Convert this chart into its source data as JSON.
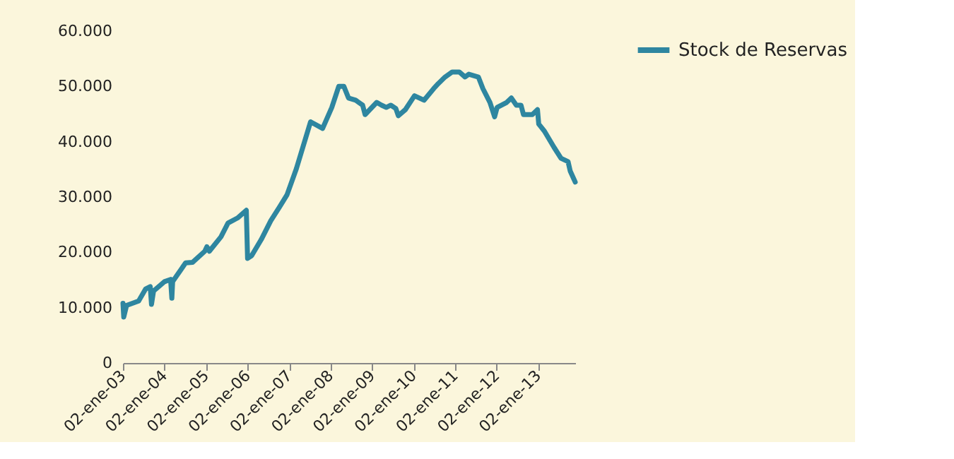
{
  "chart_data": {
    "type": "line",
    "legend": "right",
    "grid": false,
    "marker": "none",
    "line_style": "solid",
    "xlim": [
      "2003-01-02",
      "2013-11-23"
    ],
    "xticks": [
      {
        "value": "2003-01-02",
        "label": "02-ene-03"
      },
      {
        "value": "2004-01-02",
        "label": "02-ene-04"
      },
      {
        "value": "2005-01-02",
        "label": "02-ene-05"
      },
      {
        "value": "2006-01-02",
        "label": "02-ene-06"
      },
      {
        "value": "2007-01-02",
        "label": "02-ene-07"
      },
      {
        "value": "2008-01-02",
        "label": "02-ene-08"
      },
      {
        "value": "2009-01-02",
        "label": "02-ene-09"
      },
      {
        "value": "2010-01-02",
        "label": "02-ene-10"
      },
      {
        "value": "2011-01-02",
        "label": "02-ene-11"
      },
      {
        "value": "2012-01-02",
        "label": "02-ene-12"
      },
      {
        "value": "2013-01-02",
        "label": "02-ene-13"
      }
    ],
    "ylim": [
      0,
      60000
    ],
    "yticks": [
      {
        "value": 0,
        "label": "0"
      },
      {
        "value": 10000,
        "label": "10.000"
      },
      {
        "value": 20000,
        "label": "20.000"
      },
      {
        "value": 30000,
        "label": "30.000"
      },
      {
        "value": 40000,
        "label": "40.000"
      },
      {
        "value": 50000,
        "label": "50.000"
      },
      {
        "value": 60000,
        "label": "60.000"
      }
    ],
    "series": [
      {
        "name": "Stock de Reservas",
        "color": "#2e86a0",
        "x": [
          "2003-01-02",
          "2003-01-09",
          "2003-02-03",
          "2003-05-20",
          "2003-07-21",
          "2003-08-30",
          "2003-09-10",
          "2003-09-28",
          "2004-01-02",
          "2004-02-25",
          "2004-03-07",
          "2004-03-14",
          "2004-07-06",
          "2004-09-06",
          "2004-12-22",
          "2005-01-09",
          "2005-01-31",
          "2005-05-13",
          "2005-07-14",
          "2005-10-05",
          "2005-12-22",
          "2006-01-02",
          "2006-02-07",
          "2006-05-02",
          "2006-07-25",
          "2006-10-13",
          "2006-12-15",
          "2007-03-07",
          "2007-07-10",
          "2007-10-24",
          "2008-01-13",
          "2008-03-14",
          "2008-04-28",
          "2008-06-08",
          "2008-08-10",
          "2008-10-10",
          "2008-11-01",
          "2008-12-12",
          "2009-02-11",
          "2009-03-26",
          "2009-05-06",
          "2009-06-15",
          "2009-07-29",
          "2009-08-20",
          "2009-10-21",
          "2010-01-09",
          "2010-04-03",
          "2010-06-27",
          "2010-08-06",
          "2010-10-05",
          "2010-12-07",
          "2011-02-07",
          "2011-03-30",
          "2011-05-02",
          "2011-07-25",
          "2011-09-03",
          "2011-11-04",
          "2011-12-15",
          "2012-01-06",
          "2012-03-30",
          "2012-05-10",
          "2012-06-23",
          "2012-08-03",
          "2012-08-25",
          "2012-11-11",
          "2012-12-26",
          "2013-01-06",
          "2013-02-25",
          "2013-05-20",
          "2013-07-21",
          "2013-09-21",
          "2013-10-10",
          "2013-11-23"
        ],
        "values": [
          10800,
          8300,
          10400,
          11200,
          13400,
          13800,
          10600,
          13000,
          14700,
          15100,
          11700,
          14700,
          18100,
          18200,
          20200,
          21000,
          20200,
          22800,
          25300,
          26200,
          27600,
          18900,
          19400,
          22300,
          25700,
          28300,
          30400,
          35100,
          43600,
          42400,
          46200,
          50000,
          50000,
          47900,
          47500,
          46600,
          44900,
          45800,
          47100,
          46600,
          46200,
          46600,
          46000,
          44700,
          45800,
          48300,
          47500,
          49600,
          50500,
          51700,
          52600,
          52600,
          51700,
          52200,
          51700,
          49600,
          47100,
          44500,
          46200,
          47100,
          47900,
          46600,
          46600,
          44900,
          44900,
          45800,
          43200,
          41900,
          39000,
          37000,
          36400,
          34700,
          32700
        ]
      }
    ]
  }
}
